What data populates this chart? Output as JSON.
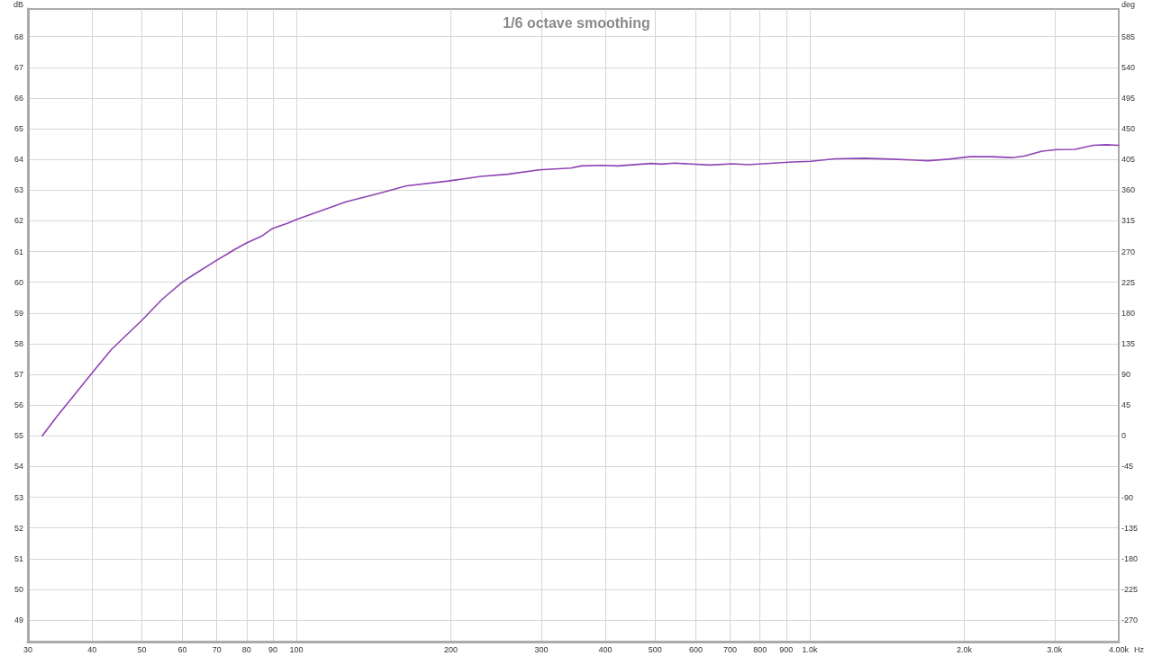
{
  "chart_data": {
    "type": "line",
    "title": "1/6 octave smoothing",
    "xlabel": "Hz",
    "ylabel": "dB",
    "y2label": "deg",
    "log": "x",
    "x": [
      32,
      34.2,
      40,
      43.6,
      50,
      54.8,
      60,
      62.7,
      70,
      75.7,
      80,
      85.5,
      90,
      96,
      100,
      125,
      143,
      164,
      198,
      229,
      258,
      297,
      343,
      359,
      394,
      423,
      491,
      514,
      546,
      640,
      708,
      757,
      867,
      927,
      1005,
      1119,
      1280,
      1445,
      1699,
      1867,
      2052,
      2253,
      2476,
      2615,
      2835,
      3031,
      3287,
      3564,
      3780,
      4000
    ],
    "series": [
      {
        "color": "#8e44b4",
        "values": [
          55.0,
          55.64,
          57.05,
          57.81,
          58.76,
          59.45,
          60.01,
          60.22,
          60.72,
          61.06,
          61.28,
          61.5,
          61.76,
          61.92,
          62.04,
          62.62,
          62.87,
          63.14,
          63.3,
          63.45,
          63.52,
          63.66,
          63.72,
          63.79,
          63.81,
          63.79,
          63.87,
          63.85,
          63.88,
          63.82,
          63.86,
          63.83,
          63.89,
          63.92,
          63.94,
          64.02,
          64.04,
          64.01,
          63.96,
          64.01,
          64.09,
          64.09,
          64.06,
          64.11,
          64.27,
          64.32,
          64.33,
          64.46,
          64.48,
          64.46
        ]
      }
    ],
    "xlim": [
      30,
      4000
    ],
    "ylim": [
      48.3,
      68.9
    ],
    "y2lim": [
      -301.5,
      625.5
    ],
    "xticks": [
      30,
      40,
      50,
      60,
      70,
      80,
      90,
      100,
      200,
      300,
      400,
      500,
      600,
      700,
      800,
      900,
      {
        "value": 1000,
        "label": "1.0k"
      },
      {
        "value": 2000,
        "label": "2.0k"
      },
      {
        "value": 3000,
        "label": "3.0k"
      },
      {
        "value": 4000,
        "label": "4.00k"
      }
    ],
    "yticks": [
      49,
      50,
      51,
      52,
      53,
      54,
      55,
      56,
      57,
      58,
      59,
      60,
      61,
      62,
      63,
      64,
      65,
      66,
      67,
      68
    ],
    "y2ticks": [
      -270,
      -225,
      -180,
      -135,
      -90,
      -45,
      0,
      45,
      90,
      135,
      180,
      225,
      270,
      315,
      360,
      405,
      450,
      495,
      540,
      585
    ],
    "grid": true,
    "marker": "none",
    "line_style": "solid"
  }
}
